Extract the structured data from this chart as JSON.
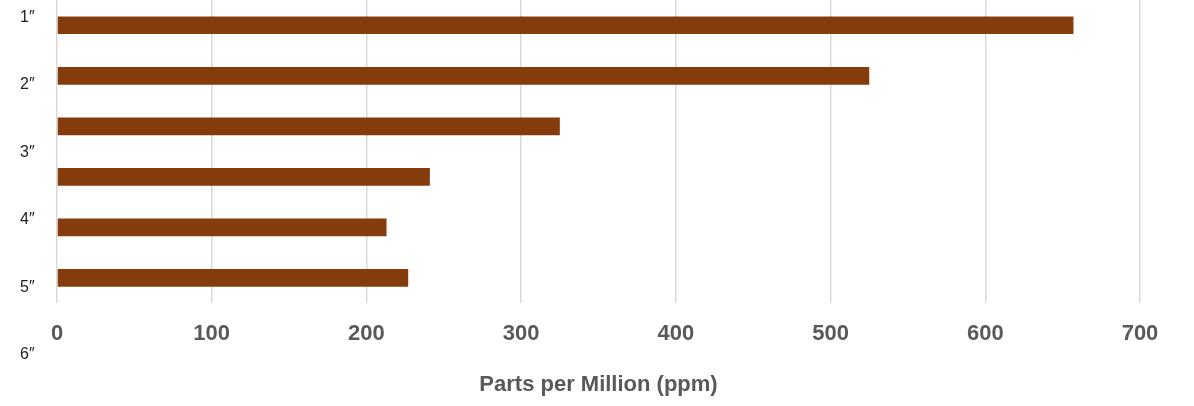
{
  "chart_data": {
    "type": "bar",
    "orientation": "horizontal",
    "categories": [
      null,
      null,
      null,
      null,
      null,
      null
    ],
    "values": [
      657,
      525,
      325,
      241,
      213,
      227
    ],
    "color": "#843c0c",
    "xlim": [
      0,
      700
    ],
    "xticks": [
      0,
      100,
      200,
      300,
      400,
      500,
      600,
      700
    ],
    "grid": "x",
    "legend": false,
    "xlabel": "Parts per Million (ppm)",
    "annotations": [
      "1″",
      "2″",
      "3″",
      "4″",
      "5″",
      "6″"
    ]
  }
}
